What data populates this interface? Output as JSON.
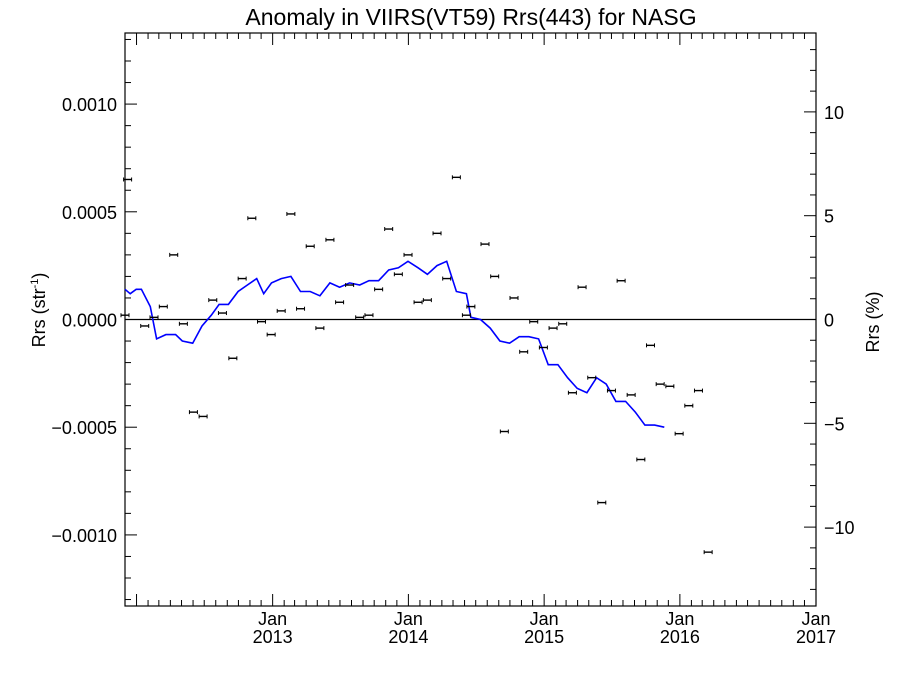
{
  "chart_data": {
    "type": "scatter",
    "title": "Anomaly in VIIRS(VT59) Rrs(443) for NASG",
    "ylabel_left": "Rrs (str",
    "ylabel_left_sup": "-1",
    "ylabel_left_close": ")",
    "ylabel_right": "Rrs (%)",
    "x_range": [
      "2011-12-01",
      "2017-01-01"
    ],
    "y_left_range": [
      -0.00133,
      0.00133
    ],
    "y_right_range": [
      -13.8,
      13.8
    ],
    "x_ticks": [
      {
        "date": "2013-01-01",
        "month": "Jan",
        "year": "2013"
      },
      {
        "date": "2014-01-01",
        "month": "Jan",
        "year": "2014"
      },
      {
        "date": "2015-01-01",
        "month": "Jan",
        "year": "2015"
      },
      {
        "date": "2016-01-01",
        "month": "Jan",
        "year": "2016"
      },
      {
        "date": "2017-01-01",
        "month": "Jan",
        "year": "2017"
      }
    ],
    "y_left_ticks": [
      {
        "value": 0.001,
        "label": "0.0010"
      },
      {
        "value": 0.0005,
        "label": "0.0005"
      },
      {
        "value": 0.0,
        "label": "0.0000"
      },
      {
        "value": -0.0005,
        "label": "−0.0005"
      },
      {
        "value": -0.001,
        "label": "−0.0010"
      }
    ],
    "y_right_ticks": [
      {
        "value": 10,
        "label": "10"
      },
      {
        "value": 5,
        "label": "5"
      },
      {
        "value": 0,
        "label": "0"
      },
      {
        "value": -5,
        "label": "−5"
      },
      {
        "value": -10,
        "label": "−10"
      }
    ],
    "zero_line": true,
    "colors": {
      "points": "#000000",
      "line": "#0000ff"
    },
    "series": [
      {
        "type": "errorbar-points",
        "points": [
          {
            "x": "2011-12-01",
            "y": 2e-05
          },
          {
            "x": "2011-12-08",
            "y": 0.00065
          },
          {
            "x": "2012-01-23",
            "y": -3e-05
          },
          {
            "x": "2012-02-17",
            "y": 1e-05
          },
          {
            "x": "2012-03-13",
            "y": 6e-05
          },
          {
            "x": "2012-04-10",
            "y": 0.0003
          },
          {
            "x": "2012-05-06",
            "y": -2e-05
          },
          {
            "x": "2012-06-02",
            "y": -0.00043
          },
          {
            "x": "2012-06-28",
            "y": -0.00045
          },
          {
            "x": "2012-07-24",
            "y": 9e-05
          },
          {
            "x": "2012-08-19",
            "y": 3e-05
          },
          {
            "x": "2012-09-16",
            "y": -0.00018
          },
          {
            "x": "2012-10-11",
            "y": 0.00019
          },
          {
            "x": "2012-11-06",
            "y": 0.00047
          },
          {
            "x": "2012-12-02",
            "y": -1e-05
          },
          {
            "x": "2012-12-28",
            "y": -7e-05
          },
          {
            "x": "2013-01-24",
            "y": 4e-05
          },
          {
            "x": "2013-02-19",
            "y": 0.00049
          },
          {
            "x": "2013-03-17",
            "y": 5e-05
          },
          {
            "x": "2013-04-12",
            "y": 0.00034
          },
          {
            "x": "2013-05-08",
            "y": -4e-05
          },
          {
            "x": "2013-06-04",
            "y": 0.00037
          },
          {
            "x": "2013-06-30",
            "y": 8e-05
          },
          {
            "x": "2013-07-27",
            "y": 0.00016
          },
          {
            "x": "2013-08-23",
            "y": 1e-05
          },
          {
            "x": "2013-09-17",
            "y": 2e-05
          },
          {
            "x": "2013-10-13",
            "y": 0.00014
          },
          {
            "x": "2013-11-09",
            "y": 0.00042
          },
          {
            "x": "2013-12-05",
            "y": 0.00021
          },
          {
            "x": "2013-12-31",
            "y": 0.0003
          },
          {
            "x": "2014-01-27",
            "y": 8e-05
          },
          {
            "x": "2014-02-21",
            "y": 9e-05
          },
          {
            "x": "2014-03-19",
            "y": 0.0004
          },
          {
            "x": "2014-04-14",
            "y": 0.00019
          },
          {
            "x": "2014-05-10",
            "y": 0.00066
          },
          {
            "x": "2014-06-06",
            "y": 2e-05
          },
          {
            "x": "2014-06-18",
            "y": 6e-05
          },
          {
            "x": "2014-07-26",
            "y": 0.00035
          },
          {
            "x": "2014-08-21",
            "y": 0.0002
          },
          {
            "x": "2014-09-16",
            "y": -0.00052
          },
          {
            "x": "2014-10-12",
            "y": 0.0001
          },
          {
            "x": "2014-11-07",
            "y": -0.00015
          },
          {
            "x": "2014-12-04",
            "y": -1e-05
          },
          {
            "x": "2014-12-30",
            "y": -0.00013
          },
          {
            "x": "2015-01-25",
            "y": -4e-05
          },
          {
            "x": "2015-02-20",
            "y": -2e-05
          },
          {
            "x": "2015-03-18",
            "y": -0.00034
          },
          {
            "x": "2015-04-13",
            "y": 0.00015
          },
          {
            "x": "2015-05-09",
            "y": -0.00027
          },
          {
            "x": "2015-06-05",
            "y": -0.00085
          },
          {
            "x": "2015-07-01",
            "y": -0.00033
          },
          {
            "x": "2015-07-27",
            "y": 0.00018
          },
          {
            "x": "2015-08-23",
            "y": -0.00035
          },
          {
            "x": "2015-09-18",
            "y": -0.00065
          },
          {
            "x": "2015-10-14",
            "y": -0.00012
          },
          {
            "x": "2015-11-09",
            "y": -0.0003
          },
          {
            "x": "2015-12-05",
            "y": -0.00031
          },
          {
            "x": "2015-12-30",
            "y": -0.00053
          },
          {
            "x": "2016-01-25",
            "y": -0.0004
          },
          {
            "x": "2016-02-20",
            "y": -0.00033
          },
          {
            "x": "2016-03-17",
            "y": -0.00108
          }
        ]
      },
      {
        "type": "line",
        "points": [
          {
            "x": "2011-12-01",
            "y": 0.00014
          },
          {
            "x": "2011-12-15",
            "y": 0.00012
          },
          {
            "x": "2011-12-31",
            "y": 0.00014
          },
          {
            "x": "2012-01-14",
            "y": 0.00014
          },
          {
            "x": "2012-02-07",
            "y": 6e-05
          },
          {
            "x": "2012-02-24",
            "y": -9e-05
          },
          {
            "x": "2012-03-20",
            "y": -7e-05
          },
          {
            "x": "2012-04-15",
            "y": -7e-05
          },
          {
            "x": "2012-05-03",
            "y": -0.0001
          },
          {
            "x": "2012-05-31",
            "y": -0.00011
          },
          {
            "x": "2012-06-25",
            "y": -3e-05
          },
          {
            "x": "2012-07-20",
            "y": 2e-05
          },
          {
            "x": "2012-08-10",
            "y": 7e-05
          },
          {
            "x": "2012-09-04",
            "y": 7e-05
          },
          {
            "x": "2012-09-30",
            "y": 0.00013
          },
          {
            "x": "2012-10-25",
            "y": 0.00016
          },
          {
            "x": "2012-11-19",
            "y": 0.00019
          },
          {
            "x": "2012-12-08",
            "y": 0.00012
          },
          {
            "x": "2012-12-29",
            "y": 0.00017
          },
          {
            "x": "2013-01-24",
            "y": 0.00019
          },
          {
            "x": "2013-02-19",
            "y": 0.0002
          },
          {
            "x": "2013-03-17",
            "y": 0.00013
          },
          {
            "x": "2013-04-12",
            "y": 0.00013
          },
          {
            "x": "2013-05-08",
            "y": 0.00011
          },
          {
            "x": "2013-06-04",
            "y": 0.00017
          },
          {
            "x": "2013-06-30",
            "y": 0.00015
          },
          {
            "x": "2013-07-27",
            "y": 0.00017
          },
          {
            "x": "2013-08-23",
            "y": 0.00016
          },
          {
            "x": "2013-09-17",
            "y": 0.00018
          },
          {
            "x": "2013-10-13",
            "y": 0.00018
          },
          {
            "x": "2013-11-09",
            "y": 0.00023
          },
          {
            "x": "2013-12-05",
            "y": 0.00024
          },
          {
            "x": "2013-12-31",
            "y": 0.00027
          },
          {
            "x": "2014-01-27",
            "y": 0.00024
          },
          {
            "x": "2014-02-21",
            "y": 0.00021
          },
          {
            "x": "2014-03-19",
            "y": 0.00025
          },
          {
            "x": "2014-04-14",
            "y": 0.00027
          },
          {
            "x": "2014-05-10",
            "y": 0.00013
          },
          {
            "x": "2014-06-06",
            "y": 0.00012
          },
          {
            "x": "2014-06-18",
            "y": 1e-05
          },
          {
            "x": "2014-07-14",
            "y": 0.0
          },
          {
            "x": "2014-08-09",
            "y": -4e-05
          },
          {
            "x": "2014-09-04",
            "y": -0.0001
          },
          {
            "x": "2014-09-30",
            "y": -0.00011
          },
          {
            "x": "2014-10-26",
            "y": -8e-05
          },
          {
            "x": "2014-11-21",
            "y": -8e-05
          },
          {
            "x": "2014-12-17",
            "y": -9e-05
          },
          {
            "x": "2015-01-12",
            "y": -0.00021
          },
          {
            "x": "2015-02-07",
            "y": -0.00021
          },
          {
            "x": "2015-03-05",
            "y": -0.00027
          },
          {
            "x": "2015-03-31",
            "y": -0.00032
          },
          {
            "x": "2015-04-26",
            "y": -0.00034
          },
          {
            "x": "2015-05-22",
            "y": -0.00027
          },
          {
            "x": "2015-06-17",
            "y": -0.0003
          },
          {
            "x": "2015-07-13",
            "y": -0.00038
          },
          {
            "x": "2015-08-08",
            "y": -0.00038
          },
          {
            "x": "2015-09-03",
            "y": -0.00043
          },
          {
            "x": "2015-09-29",
            "y": -0.00049
          },
          {
            "x": "2015-10-25",
            "y": -0.00049
          },
          {
            "x": "2015-11-20",
            "y": -0.0005
          }
        ]
      }
    ]
  }
}
